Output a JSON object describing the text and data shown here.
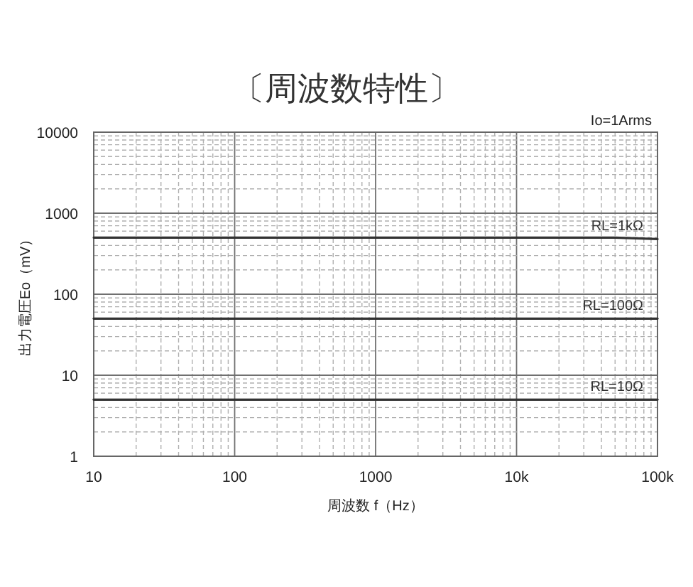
{
  "chart_data": {
    "type": "line",
    "title": "〔周波数特性〕",
    "xlabel": "周波数 f（Hz）",
    "ylabel": "出力電圧Eo（mV）",
    "annotations": [
      "Io=1Arms"
    ],
    "log": "xy",
    "grid": true,
    "xlim": [
      10,
      100000
    ],
    "ylim": [
      1,
      10000
    ],
    "xticks": [
      10,
      {
        "value": 20,
        "label": null
      },
      {
        "value": 30,
        "label": null
      },
      {
        "value": 40,
        "label": null
      },
      {
        "value": 50,
        "label": null
      },
      {
        "value": 60,
        "label": null
      },
      {
        "value": 70,
        "label": null
      },
      {
        "value": 80,
        "label": null
      },
      {
        "value": 90,
        "label": null
      },
      100,
      {
        "value": 200,
        "label": null
      },
      {
        "value": 300,
        "label": null
      },
      {
        "value": 400,
        "label": null
      },
      {
        "value": 500,
        "label": null
      },
      {
        "value": 600,
        "label": null
      },
      {
        "value": 700,
        "label": null
      },
      {
        "value": 800,
        "label": null
      },
      {
        "value": 900,
        "label": null
      },
      1000,
      {
        "value": 2000,
        "label": null
      },
      {
        "value": 3000,
        "label": null
      },
      {
        "value": 4000,
        "label": null
      },
      {
        "value": 5000,
        "label": null
      },
      {
        "value": 6000,
        "label": null
      },
      {
        "value": 7000,
        "label": null
      },
      {
        "value": 8000,
        "label": null
      },
      {
        "value": 9000,
        "label": null
      },
      {
        "value": 10000,
        "label": "10k"
      },
      {
        "value": 20000,
        "label": null
      },
      {
        "value": 30000,
        "label": null
      },
      {
        "value": 40000,
        "label": null
      },
      {
        "value": 50000,
        "label": null
      },
      {
        "value": 60000,
        "label": null
      },
      {
        "value": 70000,
        "label": null
      },
      {
        "value": 80000,
        "label": null
      },
      {
        "value": 90000,
        "label": null
      },
      {
        "value": 100000,
        "label": "100k"
      }
    ],
    "yticks": [
      1,
      {
        "value": 2,
        "label": null
      },
      {
        "value": 3,
        "label": null
      },
      {
        "value": 4,
        "label": null
      },
      {
        "value": 6,
        "label": null
      },
      {
        "value": 7,
        "label": null
      },
      {
        "value": 8,
        "label": null
      },
      {
        "value": 9,
        "label": null
      },
      10,
      {
        "value": 20,
        "label": null
      },
      {
        "value": 30,
        "label": null
      },
      {
        "value": 40,
        "label": null
      },
      {
        "value": 60,
        "label": null
      },
      {
        "value": 70,
        "label": null
      },
      {
        "value": 80,
        "label": null
      },
      {
        "value": 90,
        "label": null
      },
      100,
      {
        "value": 200,
        "label": null
      },
      {
        "value": 300,
        "label": null
      },
      {
        "value": 400,
        "label": null
      },
      {
        "value": 500,
        "label": null
      },
      {
        "value": 600,
        "label": null
      },
      {
        "value": 700,
        "label": null
      },
      {
        "value": 800,
        "label": null
      },
      {
        "value": 900,
        "label": null
      },
      1000,
      {
        "value": 2000,
        "label": null
      },
      {
        "value": 3000,
        "label": null
      },
      {
        "value": 4000,
        "label": null
      },
      {
        "value": 5000,
        "label": null
      },
      {
        "value": 6000,
        "label": null
      },
      {
        "value": 7000,
        "label": null
      },
      {
        "value": 8000,
        "label": null
      },
      {
        "value": 9000,
        "label": null
      },
      10000
    ],
    "series": [
      {
        "name": "RL=1kΩ",
        "color": "#333333",
        "x": [
          10,
          100,
          1000,
          10000,
          50000,
          100000
        ],
        "values": [
          500,
          500,
          500,
          500,
          500,
          480
        ]
      },
      {
        "name": "RL=100Ω",
        "color": "#333333",
        "x": [
          10,
          100,
          1000,
          10000,
          100000
        ],
        "values": [
          50,
          50,
          50,
          50,
          50
        ]
      },
      {
        "name": "RL=10Ω",
        "color": "#333333",
        "x": [
          10,
          100,
          1000,
          10000,
          100000
        ],
        "values": [
          5,
          5,
          5,
          5,
          5
        ]
      }
    ]
  }
}
